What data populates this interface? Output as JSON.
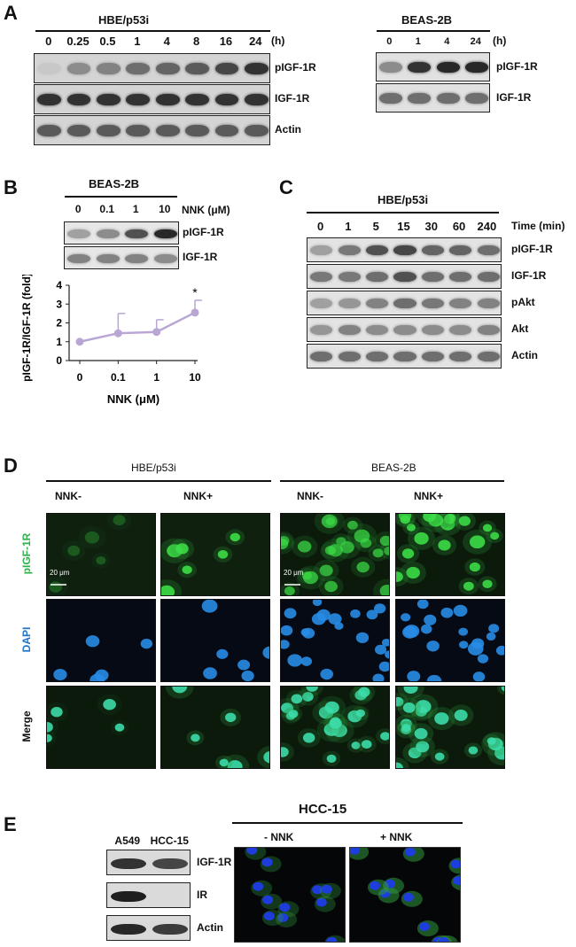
{
  "panels": {
    "A": "A",
    "B": "B",
    "C": "C",
    "D": "D",
    "E": "E"
  },
  "panelA": {
    "left": {
      "cell_line": "HBE/p53i",
      "timepoints": [
        "0",
        "0.25",
        "0.5",
        "1",
        "4",
        "8",
        "16",
        "24"
      ],
      "unit": "(h)",
      "rows": [
        "pIGF-1R",
        "IGF-1R",
        "Actin"
      ],
      "band_intensity": {
        "pIGF-1R": [
          0.15,
          0.45,
          0.5,
          0.6,
          0.65,
          0.7,
          0.8,
          0.9
        ],
        "IGF-1R": [
          0.9,
          0.9,
          0.9,
          0.9,
          0.9,
          0.9,
          0.9,
          0.9
        ],
        "Actin": [
          0.7,
          0.7,
          0.7,
          0.7,
          0.7,
          0.7,
          0.7,
          0.7
        ]
      }
    },
    "right": {
      "cell_line": "BEAS-2B",
      "timepoints": [
        "0",
        "1",
        "4",
        "24"
      ],
      "unit": "(h)",
      "rows": [
        "pIGF-1R",
        "IGF-1R"
      ],
      "band_intensity": {
        "pIGF-1R": [
          0.45,
          0.9,
          0.95,
          0.95
        ],
        "IGF-1R": [
          0.6,
          0.6,
          0.6,
          0.6
        ]
      }
    }
  },
  "panelB": {
    "cell_line": "BEAS-2B",
    "doses": [
      "0",
      "0.1",
      "1",
      "10"
    ],
    "dose_label": "NNK (μM)",
    "rows": [
      "pIGF-1R",
      "IGF-1R"
    ],
    "band_intensity": {
      "pIGF-1R": [
        0.35,
        0.45,
        0.75,
        0.95
      ],
      "IGF-1R": [
        0.5,
        0.5,
        0.5,
        0.45
      ]
    }
  },
  "chart_data": {
    "type": "line",
    "categories": [
      "0",
      "0.1",
      "1",
      "10"
    ],
    "series": [
      {
        "values": [
          1.0,
          1.45,
          1.52,
          2.55
        ],
        "error": [
          0,
          1.05,
          0.65,
          0.65
        ]
      }
    ],
    "xlabel": "NNK (μM)",
    "ylabel": "pIGF-1R/IGF-1R (fold)",
    "ylim": [
      0,
      4
    ],
    "yticks": [
      "0",
      "1",
      "2",
      "3",
      "4"
    ],
    "significance": {
      "index": 3,
      "mark": "*"
    },
    "color": "#b9a6d4",
    "grid": false
  },
  "panelC": {
    "cell_line": "HBE/p53i",
    "timepoints": [
      "0",
      "1",
      "5",
      "15",
      "30",
      "60",
      "240"
    ],
    "unit": "Time (min)",
    "rows": [
      "pIGF-1R",
      "IGF-1R",
      "pAkt",
      "Akt",
      "Actin"
    ],
    "band_intensity": {
      "pIGF-1R": [
        0.35,
        0.55,
        0.75,
        0.8,
        0.65,
        0.65,
        0.6
      ],
      "IGF-1R": [
        0.55,
        0.55,
        0.6,
        0.75,
        0.6,
        0.6,
        0.6
      ],
      "pAkt": [
        0.35,
        0.4,
        0.5,
        0.6,
        0.55,
        0.5,
        0.5
      ],
      "Akt": [
        0.4,
        0.5,
        0.45,
        0.45,
        0.45,
        0.45,
        0.5
      ],
      "Actin": [
        0.6,
        0.6,
        0.6,
        0.6,
        0.6,
        0.6,
        0.6
      ]
    }
  },
  "panelD": {
    "groups": [
      "HBE/p53i",
      "BEAS-2B"
    ],
    "columns": [
      "NNK-",
      "NNK+",
      "NNK-",
      "NNK+"
    ],
    "rows": [
      "pIGF-1R",
      "DAPI",
      "Merge"
    ],
    "row_colors": [
      "#2bb34a",
      "#1a73c8",
      "#111111"
    ],
    "scalebar": "20 μm"
  },
  "panelE": {
    "blot_lanes": [
      "A549",
      "HCC-15"
    ],
    "blot_rows": [
      "IGF-1R",
      "IR",
      "Actin"
    ],
    "band_intensity": {
      "IGF-1R": [
        0.85,
        0.75
      ],
      "IR": [
        0.95,
        0.0
      ],
      "Actin": [
        0.9,
        0.8
      ]
    },
    "micro_title": "HCC-15",
    "micro_labels": [
      "- NNK",
      "+ NNK"
    ]
  }
}
